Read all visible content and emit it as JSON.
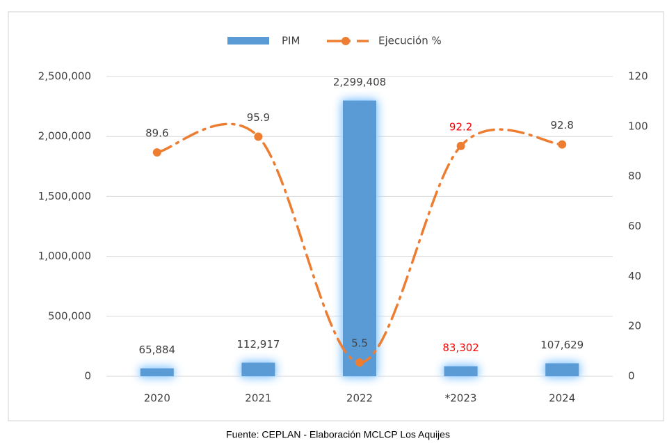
{
  "chart_data": {
    "type": "bar_line",
    "categories": [
      "2020",
      "2021",
      "2022",
      "*2023",
      "2024"
    ],
    "series": [
      {
        "name": "PIM",
        "color": "#5b9bd5",
        "values": [
          65884,
          112917,
          2299408,
          83302,
          107629
        ],
        "value_labels": [
          "65,884",
          "112,917",
          "2,299,408",
          "83,302",
          "107,629"
        ],
        "value_label_colors": [
          "#404040",
          "#404040",
          "#404040",
          "#ff0000",
          "#404040"
        ]
      },
      {
        "name": "Ejecución %",
        "color": "#ed7d31",
        "axis": "y2",
        "values": [
          89.6,
          95.9,
          5.5,
          92.2,
          92.8
        ],
        "value_label_colors": [
          "#404040",
          "#404040",
          "#404040",
          "#ff0000",
          "#404040"
        ]
      }
    ],
    "ylim": [
      0,
      2500000
    ],
    "yticks": [
      0,
      {
        "value": 500000,
        "label": "500,000"
      },
      {
        "value": 1000000,
        "label": "1,000,000"
      },
      {
        "value": 1500000,
        "label": "1,500,000"
      },
      {
        "value": 2000000,
        "label": "2,000,000"
      },
      {
        "value": 2500000,
        "label": "2,500,000"
      }
    ],
    "y2lim": [
      0,
      120
    ],
    "y2ticks": [
      0,
      20,
      40,
      60,
      80,
      100,
      120
    ],
    "grid": true,
    "legend": "top",
    "source": "Fuente: CEPLAN - Elaboración MCLCP Los Aquijes"
  }
}
